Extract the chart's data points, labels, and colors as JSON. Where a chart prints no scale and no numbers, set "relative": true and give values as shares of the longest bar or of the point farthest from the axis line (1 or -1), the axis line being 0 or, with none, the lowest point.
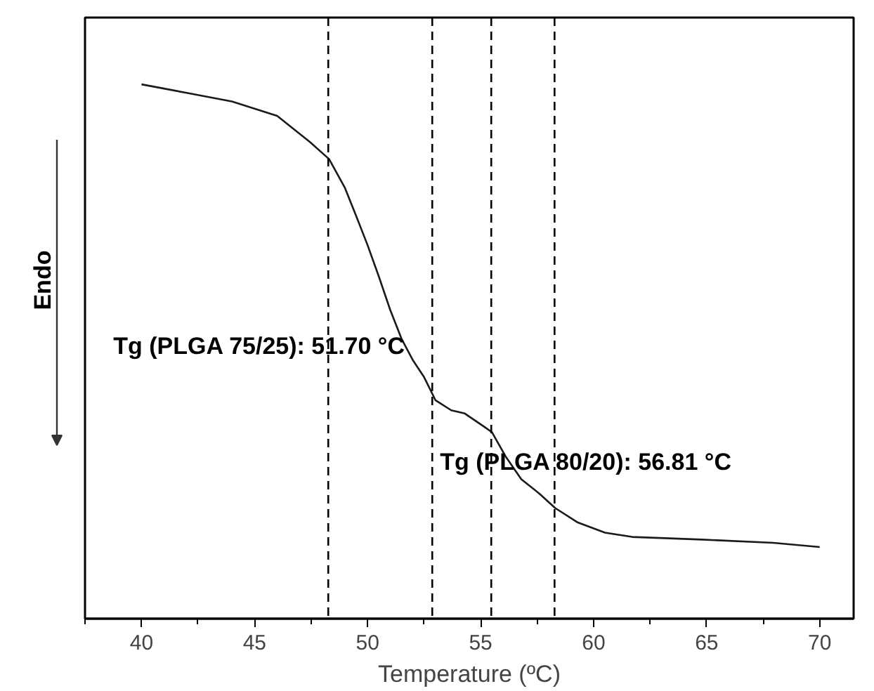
{
  "chart_data": {
    "type": "line",
    "xlabel": "Temperature (ºC)",
    "ylabel": "Endo",
    "relative": true,
    "xlim": [
      37.5,
      71.5
    ],
    "xticks": [
      40,
      45,
      50,
      55,
      60,
      65,
      70
    ],
    "x": [
      40,
      42,
      44,
      46,
      47.45,
      48.3,
      49,
      49.5,
      50,
      50.5,
      51,
      51.5,
      52,
      52.5,
      53,
      53.7,
      54.3,
      55.2,
      55.5,
      56.1,
      56.8,
      57.6,
      58.3,
      59.3,
      60.5,
      61.7,
      64.8,
      67.95,
      70
    ],
    "series": [
      {
        "color": "#1a1a1a",
        "values": [
          1.0,
          0.984,
          0.968,
          0.941,
          0.892,
          0.86,
          0.806,
          0.753,
          0.699,
          0.64,
          0.578,
          0.524,
          0.484,
          0.452,
          0.409,
          0.39,
          0.384,
          0.358,
          0.349,
          0.304,
          0.261,
          0.234,
          0.207,
          0.18,
          0.161,
          0.153,
          0.148,
          0.142,
          0.134
        ]
      }
    ],
    "ref_lines": [
      {
        "axis": "x",
        "value": 48.26,
        "color": "#000000",
        "line_style": "dashed"
      },
      {
        "axis": "x",
        "value": 52.86,
        "color": "#000000",
        "line_style": "dashed"
      },
      {
        "axis": "x",
        "value": 55.47,
        "color": "#000000",
        "line_style": "dashed"
      },
      {
        "axis": "x",
        "value": 58.27,
        "color": "#000000",
        "line_style": "dashed"
      }
    ],
    "annotations": [
      "Tg (PLGA 75/25): 51.70 °C",
      "Tg (PLGA 80/20): 56.81 °C"
    ],
    "grid": false
  }
}
